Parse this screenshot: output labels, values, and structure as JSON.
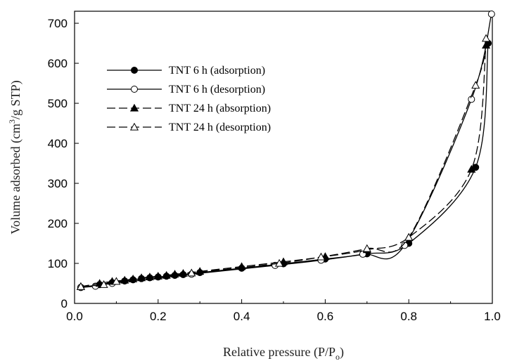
{
  "chart_data": {
    "type": "line",
    "title": "",
    "xlabel": {
      "main": "Relative pressure (P/P",
      "sub": "o",
      "tail": ")"
    },
    "ylabel": {
      "main": "Volume adsorbed (cm",
      "sup": "3",
      "tail": "/g STP)"
    },
    "xlim": [
      0,
      1.0
    ],
    "ylim": [
      0,
      730
    ],
    "xticks": [
      0.0,
      0.2,
      0.4,
      0.6,
      0.8,
      1.0
    ],
    "xtick_labels": [
      "0.0",
      "0.2",
      "0.4",
      "0.6",
      "0.8",
      "1.0"
    ],
    "yticks": [
      0,
      100,
      200,
      300,
      400,
      500,
      600,
      700
    ],
    "ytick_labels": [
      "0",
      "100",
      "200",
      "300",
      "400",
      "500",
      "600",
      "700"
    ],
    "grid": false,
    "legend_position": "upper-left",
    "series": [
      {
        "name": "TNT 6 h (adsorption)",
        "marker": "filled-circle",
        "dash": "solid",
        "x": [
          0.015,
          0.06,
          0.09,
          0.12,
          0.14,
          0.16,
          0.18,
          0.2,
          0.22,
          0.24,
          0.26,
          0.3,
          0.4,
          0.5,
          0.6,
          0.7,
          0.8,
          0.96,
          0.99
        ],
        "y": [
          40,
          47,
          52,
          56,
          59,
          62,
          64,
          66,
          68,
          70,
          72,
          77,
          88,
          99,
          111,
          124,
          150,
          340,
          650
        ]
      },
      {
        "name": "TNT 6 h (desorption)",
        "marker": "open-circle",
        "dash": "solid",
        "x": [
          0.015,
          0.05,
          0.09,
          0.28,
          0.48,
          0.59,
          0.69,
          0.79,
          0.95,
          0.998
        ],
        "y": [
          40,
          43,
          50,
          73,
          95,
          108,
          123,
          145,
          510,
          723
        ]
      },
      {
        "name": "TNT 24 h (absorption)",
        "marker": "filled-triangle",
        "dash": "dash",
        "x": [
          0.015,
          0.06,
          0.09,
          0.12,
          0.14,
          0.16,
          0.18,
          0.2,
          0.22,
          0.24,
          0.26,
          0.3,
          0.4,
          0.5,
          0.6,
          0.7,
          0.8,
          0.95,
          0.985
        ],
        "y": [
          42,
          50,
          55,
          58,
          61,
          64,
          66,
          68,
          70,
          73,
          75,
          80,
          92,
          104,
          117,
          134,
          165,
          335,
          645
        ]
      },
      {
        "name": "TNT 24 h (desorption)",
        "marker": "open-triangle",
        "dash": "dash",
        "x": [
          0.015,
          0.07,
          0.1,
          0.28,
          0.49,
          0.59,
          0.7,
          0.8,
          0.96,
          0.985
        ],
        "y": [
          42,
          47,
          55,
          76,
          100,
          116,
          137,
          165,
          545,
          662
        ]
      }
    ]
  }
}
